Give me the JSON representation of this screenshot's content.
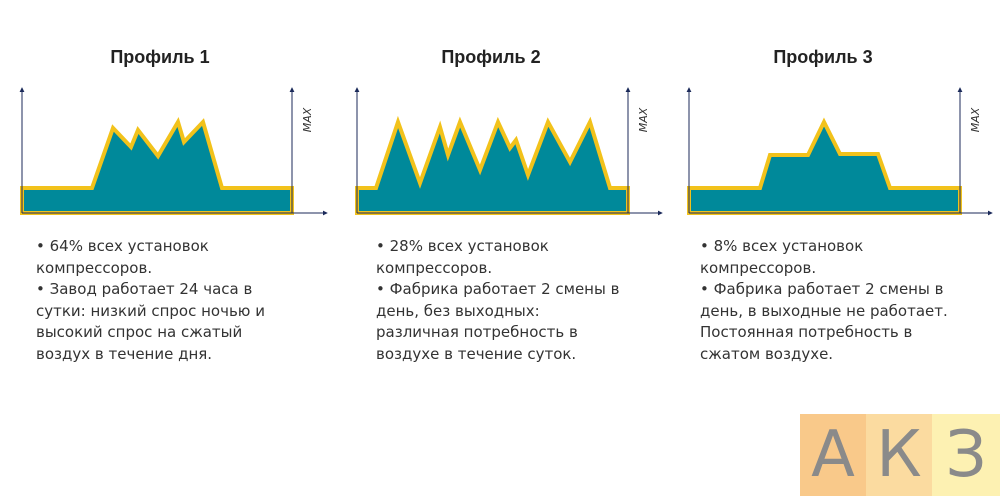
{
  "profiles": [
    {
      "title": "Профиль 1",
      "axis_label": "MAX",
      "bullets": [
        "• 64% всех установок компрессоров.",
        "• Завод работает 24 часа в сутки: низкий спрос ночью и высокий спрос на сжатый воздух в течение дня."
      ]
    },
    {
      "title": "Профиль 2",
      "axis_label": "MAX",
      "bullets": [
        "• 28% всех установок компрессоров.",
        "• Фабрика работает 2 смены в день, без выходных: различная потребность в воздухе в течение суток."
      ]
    },
    {
      "title": "Профиль 3",
      "axis_label": "MAX",
      "bullets": [
        "• 8% всех установок компрессоров.",
        "• Фабрика работает 2 смены в день, в выходные не работает. Постоянная потребность в сжатом воздухе."
      ]
    }
  ],
  "logo": {
    "letters": [
      "А",
      "К",
      "З"
    ]
  }
}
